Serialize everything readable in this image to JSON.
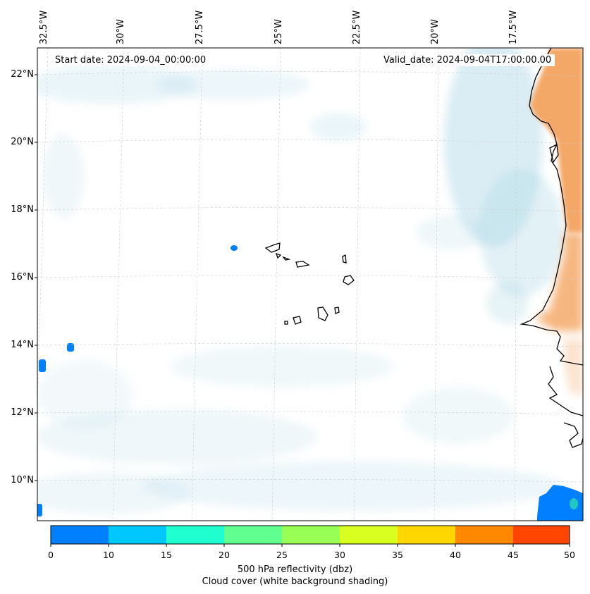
{
  "map": {
    "start_date": "Start date: 2024-09-04_00:00:00",
    "valid_date": "Valid_date: 2024-09-04T17:00:00.00",
    "lon_labels": [
      "32.5°W",
      "30°W",
      "27.5°W",
      "25°W",
      "22.5°W",
      "20°W",
      "17.5°W"
    ],
    "lat_labels": [
      "22°N",
      "20°N",
      "18°N",
      "16°N",
      "14°N",
      "12°N",
      "10°N"
    ],
    "region": "Cape Verde islands and West African coast",
    "shading": {
      "cloud_color": "#add8e6",
      "land_warm_color": "#f4a460"
    }
  },
  "colorbar": {
    "ticks": [
      "0",
      "10",
      "15",
      "20",
      "25",
      "30",
      "35",
      "40",
      "45",
      "50"
    ],
    "colors": [
      "#0080ff",
      "#00c8ff",
      "#20ffd0",
      "#60ff90",
      "#99ff55",
      "#d9ff20",
      "#ffd700",
      "#ff8800",
      "#ff4500"
    ],
    "label_line1": "500 hPa reflectivity (dbz)",
    "label_line2": "Cloud cover (white background shading)"
  }
}
